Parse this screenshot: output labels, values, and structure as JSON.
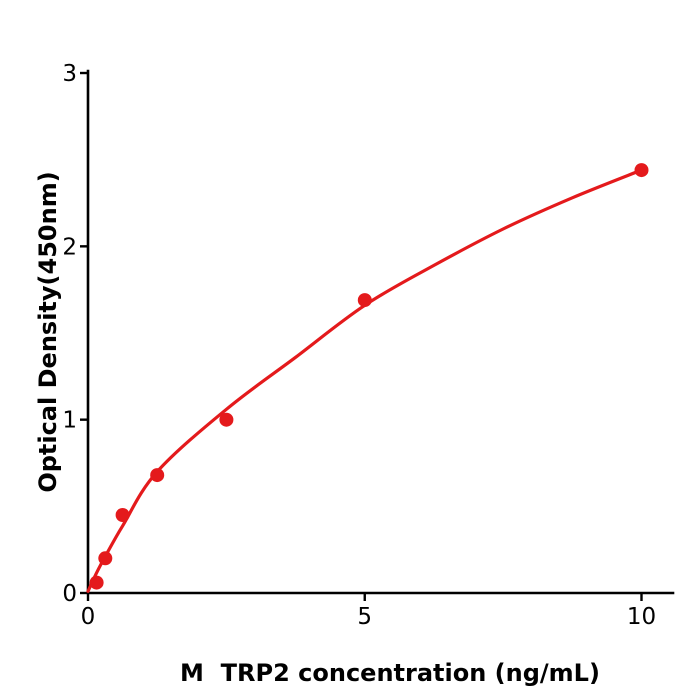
{
  "figure": {
    "background": "#ffffff"
  },
  "chart_data": {
    "type": "scatter",
    "title": "",
    "xlabel": "M  TRP2 concentration (ng/mL)",
    "ylabel": "Optical Density(450nm)",
    "xlim": [
      0,
      10.6
    ],
    "ylim": [
      0,
      3
    ],
    "grid": false,
    "legend_position": "none",
    "axis_color": "#000000",
    "accent_color": "#e41a1c",
    "xticks": [
      {
        "v": 0,
        "label": "0"
      },
      {
        "v": 5,
        "label": "5"
      },
      {
        "v": 10,
        "label": "10"
      }
    ],
    "yticks": [
      {
        "v": 0,
        "label": "0"
      },
      {
        "v": 1,
        "label": "1"
      },
      {
        "v": 2,
        "label": "2"
      },
      {
        "v": 3,
        "label": "3"
      }
    ],
    "series": [
      {
        "name": "standards",
        "type": "scatter",
        "color": "#e41a1c",
        "marker": "circle",
        "x": [
          0.156,
          0.313,
          0.625,
          1.25,
          2.5,
          5,
          10
        ],
        "y": [
          0.06,
          0.2,
          0.45,
          0.68,
          1.0,
          1.69,
          2.44
        ]
      },
      {
        "name": "fit-curve",
        "type": "line",
        "color": "#e41a1c",
        "points": [
          [
            0,
            0.01
          ],
          [
            0.16,
            0.12
          ],
          [
            0.31,
            0.21
          ],
          [
            0.63,
            0.39
          ],
          [
            1.25,
            0.7
          ],
          [
            2.5,
            1.06
          ],
          [
            3.75,
            1.36
          ],
          [
            5,
            1.66
          ],
          [
            6.25,
            1.89
          ],
          [
            7.5,
            2.1
          ],
          [
            8.75,
            2.28
          ],
          [
            10,
            2.44
          ]
        ]
      }
    ]
  }
}
